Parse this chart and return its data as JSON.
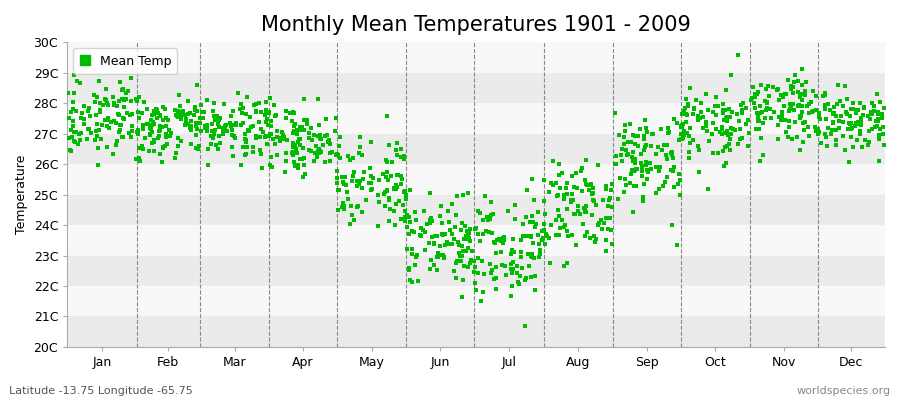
{
  "title": "Monthly Mean Temperatures 1901 - 2009",
  "ylabel": "Temperature",
  "xlabel_months": [
    "Jan",
    "Feb",
    "Mar",
    "Apr",
    "May",
    "Jun",
    "Jul",
    "Aug",
    "Sep",
    "Oct",
    "Nov",
    "Dec"
  ],
  "ylim": [
    20,
    30
  ],
  "ytick_labels": [
    "20C",
    "21C",
    "22C",
    "23C",
    "24C",
    "25C",
    "26C",
    "27C",
    "28C",
    "29C",
    "30C"
  ],
  "ytick_values": [
    20,
    21,
    22,
    23,
    24,
    25,
    26,
    27,
    28,
    29,
    30
  ],
  "mean_temps_by_month": [
    27.5,
    27.3,
    27.2,
    26.8,
    25.5,
    23.5,
    23.2,
    24.5,
    26.2,
    27.3,
    27.8,
    27.4
  ],
  "std_temps_by_month": [
    0.55,
    0.55,
    0.5,
    0.55,
    0.75,
    0.85,
    0.9,
    0.85,
    0.75,
    0.65,
    0.6,
    0.55
  ],
  "n_years": 109,
  "marker_color": "#00bb00",
  "marker_size": 2.5,
  "background_color": "#ffffff",
  "plot_bg_color": "#ffffff",
  "band_color_odd": "#ebebeb",
  "band_color_even": "#f8f8f8",
  "legend_label": "Mean Temp",
  "footer_left": "Latitude -13.75 Longitude -65.75",
  "footer_right": "worldspecies.org",
  "title_fontsize": 15,
  "axis_fontsize": 9,
  "legend_fontsize": 9,
  "footer_fontsize": 8,
  "month_days": [
    31,
    28,
    31,
    30,
    31,
    30,
    31,
    31,
    30,
    31,
    30,
    31
  ]
}
